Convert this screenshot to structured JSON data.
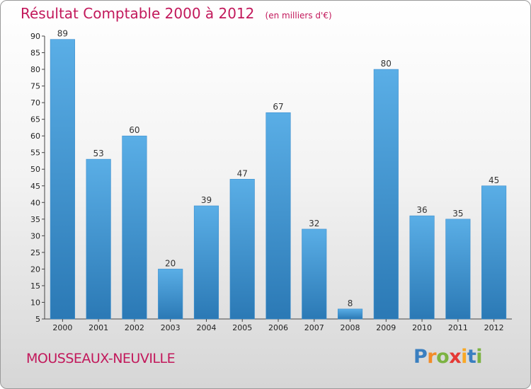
{
  "header": {
    "title": "Résultat Comptable 2000 à 2012",
    "subtitle": "(en milliers d'€)"
  },
  "footer": {
    "commune": "MOUSSEAUX-NEUVILLE",
    "logo_letters": [
      {
        "ch": "P",
        "color": "#3a7fc0"
      },
      {
        "ch": "r",
        "color": "#f28c28"
      },
      {
        "ch": "o",
        "color": "#7cb342"
      },
      {
        "ch": "x",
        "color": "#e53935"
      },
      {
        "ch": "i",
        "color": "#f9a825"
      },
      {
        "ch": "t",
        "color": "#3a7fc0"
      },
      {
        "ch": "i",
        "color": "#7cb342"
      }
    ]
  },
  "colors": {
    "bar_light": "#5aaee6",
    "bar_dark": "#2b79b5",
    "accent": "#c2185b"
  },
  "chart_data": {
    "type": "bar",
    "title": "Résultat Comptable 2000 à 2012",
    "xlabel": "",
    "ylabel": "(en milliers d'€)",
    "categories": [
      "2000",
      "2001",
      "2002",
      "2003",
      "2004",
      "2005",
      "2006",
      "2007",
      "2008",
      "2009",
      "2010",
      "2011",
      "2012"
    ],
    "values": [
      89,
      53,
      60,
      20,
      39,
      47,
      67,
      32,
      8,
      80,
      36,
      35,
      45
    ],
    "ylim": [
      5,
      90
    ],
    "yticks": [
      5,
      10,
      15,
      20,
      25,
      30,
      35,
      40,
      45,
      50,
      55,
      60,
      65,
      70,
      75,
      80,
      85,
      90
    ],
    "grid": false,
    "legend": "none"
  }
}
